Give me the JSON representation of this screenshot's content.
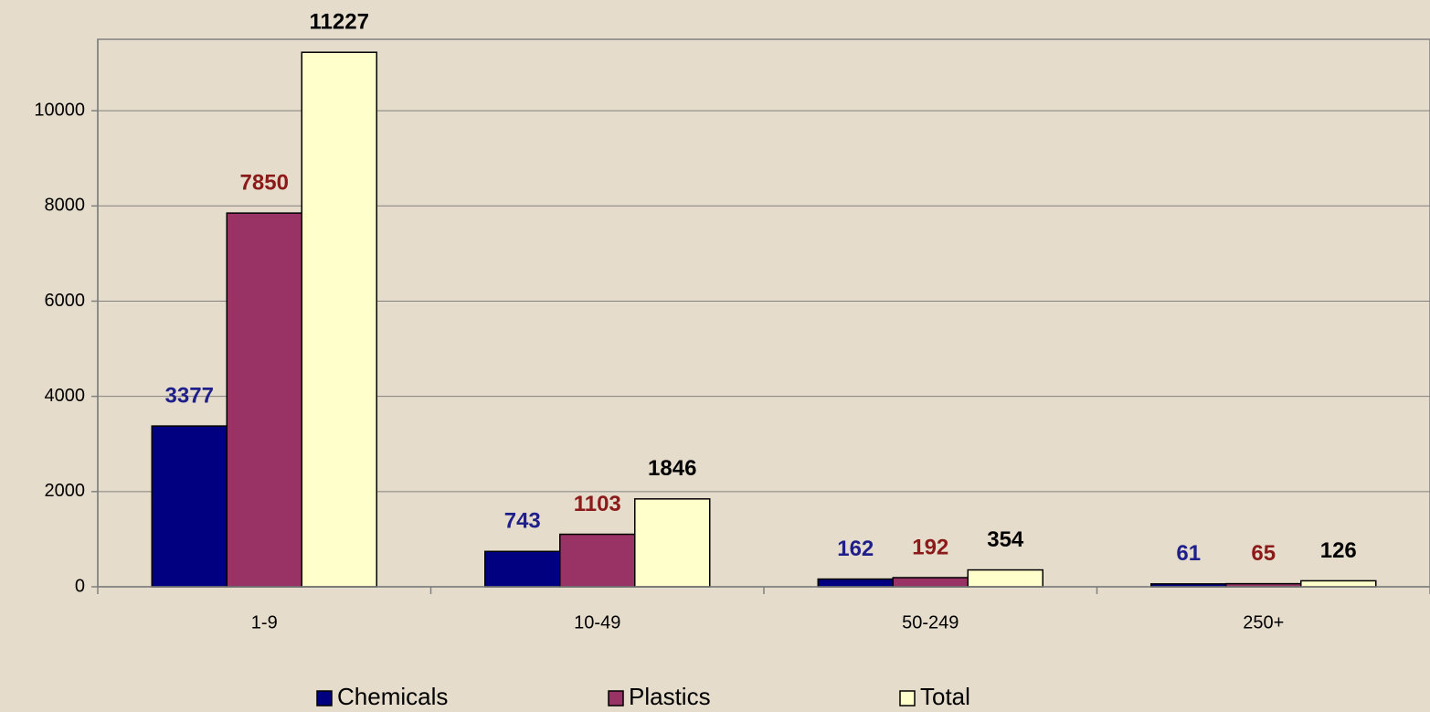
{
  "chart_data": {
    "type": "bar",
    "categories": [
      "1-9",
      "10-49",
      "50-249",
      "250+"
    ],
    "series": [
      {
        "name": "Chemicals",
        "color": "#000080",
        "label_color": "#1f1f8c",
        "values": [
          3377,
          743,
          162,
          61
        ]
      },
      {
        "name": "Plastics",
        "color": "#993366",
        "label_color": "#8b1a1a",
        "values": [
          7850,
          1103,
          192,
          65
        ]
      },
      {
        "name": "Total",
        "color": "#ffffcc",
        "label_color": "#000000",
        "values": [
          11227,
          1846,
          354,
          126
        ]
      }
    ],
    "ylim": [
      0,
      11500
    ],
    "yticks": [
      0,
      2000,
      4000,
      6000,
      8000,
      10000
    ],
    "grid": true,
    "legend": "bottom"
  }
}
